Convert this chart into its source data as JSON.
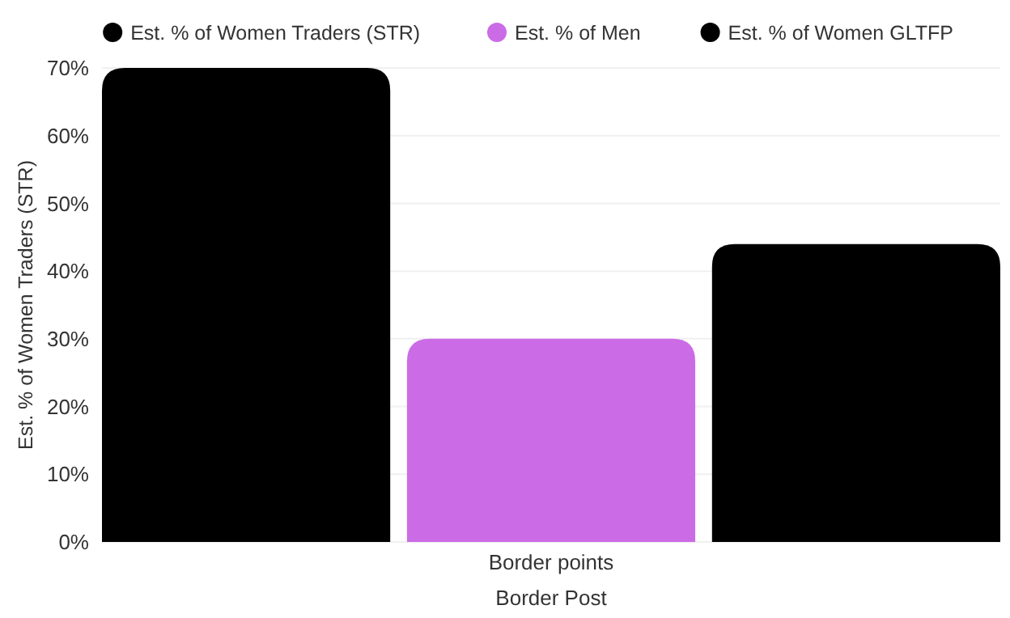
{
  "chart_data": {
    "type": "bar",
    "categories": [
      "Border points"
    ],
    "xlabel": "Border Post",
    "ylabel": "Est. % of Women Traders (STR)",
    "series": [
      {
        "name": "Est. % of Women Traders (STR)",
        "color": "#000000",
        "values": [
          70
        ]
      },
      {
        "name": "Est. % of Men",
        "color": "#cb6ce6",
        "values": [
          30
        ]
      },
      {
        "name": "Est. % of Women GLTFP",
        "color": "#000000",
        "values": [
          44
        ]
      }
    ],
    "ylim": [
      0,
      70
    ],
    "yticks": [
      {
        "value": 0,
        "label": "0%"
      },
      {
        "value": 10,
        "label": "10%"
      },
      {
        "value": 20,
        "label": "20%"
      },
      {
        "value": 30,
        "label": "30%"
      },
      {
        "value": 40,
        "label": "40%"
      },
      {
        "value": 50,
        "label": "50%"
      },
      {
        "value": 60,
        "label": "60%"
      },
      {
        "value": 70,
        "label": "70%"
      }
    ],
    "grid": "y",
    "legend": "top"
  }
}
